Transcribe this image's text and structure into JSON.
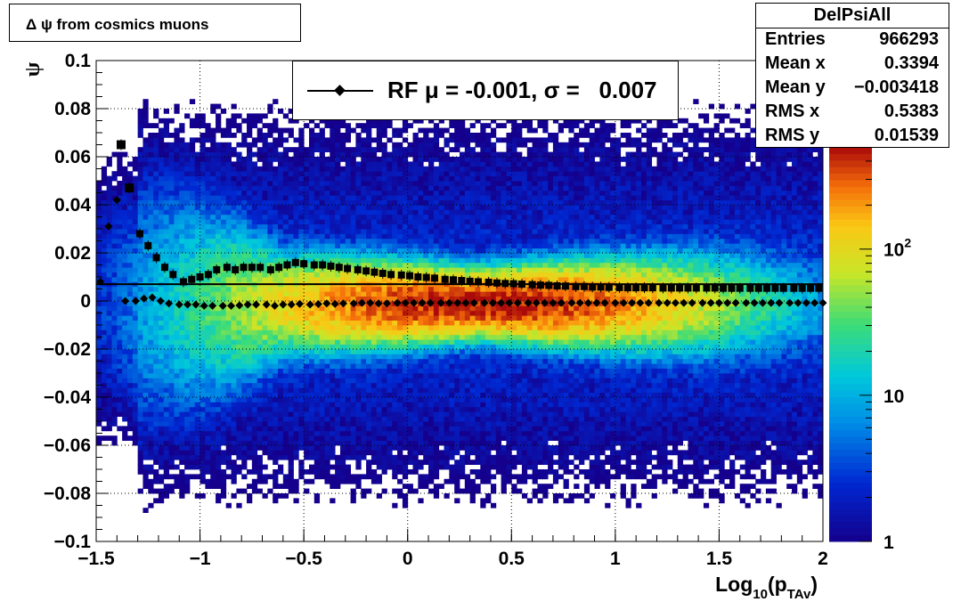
{
  "title": {
    "text": "Δ ψ from cosmics muons"
  },
  "stats": {
    "name": "DelPsiAll",
    "rows": [
      {
        "label": "Entries",
        "value": "966293"
      },
      {
        "label": "Mean x",
        "value": "0.3394"
      },
      {
        "label": "Mean y",
        "value": "−0.003418"
      },
      {
        "label": "RMS x",
        "value": "0.5383"
      },
      {
        "label": "RMS y",
        "value": "0.01539"
      }
    ]
  },
  "legend": {
    "text": "RF μ = -0.001, σ =   0.007"
  },
  "chart_data": {
    "type": "heatmap",
    "xlabel": "Log10(pTAv)",
    "ylabel": "ψ",
    "xlim": [
      -1.5,
      2.0
    ],
    "ylim": [
      -0.1,
      0.1
    ],
    "x_ticks": [
      -1.5,
      -1,
      -0.5,
      0,
      0.5,
      1,
      1.5,
      2
    ],
    "x_tick_labels": [
      "−1.5",
      "−1",
      "−0.5",
      "0",
      "0.5",
      "1",
      "1.5",
      "2"
    ],
    "y_ticks": [
      -0.1,
      -0.08,
      -0.06,
      -0.04,
      -0.02,
      0,
      0.02,
      0.04,
      0.06,
      0.08,
      0.1
    ],
    "y_tick_labels": [
      "−0.1",
      "−0.08",
      "−0.06",
      "−0.04",
      "−0.02",
      "0",
      "0.02",
      "0.04",
      "0.06",
      "0.08",
      "0.1"
    ],
    "grid": true,
    "colorbar": {
      "scale": "log",
      "range": [
        1,
        500
      ],
      "tick_values": [
        1,
        10,
        100
      ],
      "tick_labels": [
        "1",
        "10",
        "10^2"
      ]
    },
    "horizontal_line_y": 0.007,
    "series": [
      {
        "marker": "square",
        "x": [
          -1.38,
          -1.34,
          -1.29,
          -1.25,
          -1.21,
          -1.17,
          -1.13,
          -1.08,
          -1.04,
          -1.0,
          -0.96,
          -0.92,
          -0.87,
          -0.83,
          -0.79,
          -0.75,
          -0.71,
          -0.66,
          -0.62,
          -0.58,
          -0.54,
          -0.5,
          -0.45,
          -0.41,
          -0.37,
          -0.33,
          -0.29,
          -0.24,
          -0.2,
          -0.16,
          -0.12,
          -0.08,
          -0.03,
          0.01,
          0.05,
          0.09,
          0.13,
          0.18,
          0.22,
          0.26,
          0.3,
          0.34,
          0.39,
          0.43,
          0.47,
          0.51,
          0.55,
          0.6,
          0.64,
          0.68,
          0.72,
          0.76,
          0.81,
          0.85,
          0.89,
          0.93,
          0.97,
          1.02,
          1.06,
          1.1,
          1.14,
          1.18,
          1.23,
          1.27,
          1.31,
          1.35,
          1.39,
          1.44,
          1.48,
          1.52,
          1.56,
          1.6,
          1.65,
          1.69,
          1.73,
          1.77,
          1.81,
          1.86,
          1.9,
          1.94,
          1.98
        ],
        "y": [
          0.065,
          0.047,
          0.028,
          0.023,
          0.018,
          0.014,
          0.011,
          0.008,
          0.009,
          0.01,
          0.011,
          0.013,
          0.014,
          0.013,
          0.014,
          0.014,
          0.014,
          0.013,
          0.014,
          0.015,
          0.016,
          0.0155,
          0.015,
          0.015,
          0.0145,
          0.014,
          0.0135,
          0.013,
          0.0125,
          0.012,
          0.0115,
          0.011,
          0.0108,
          0.0105,
          0.01,
          0.0098,
          0.0095,
          0.009,
          0.0088,
          0.0085,
          0.0082,
          0.008,
          0.0078,
          0.0075,
          0.0073,
          0.0072,
          0.007,
          0.0068,
          0.0066,
          0.0065,
          0.0063,
          0.0062,
          0.006,
          0.006,
          0.0058,
          0.0058,
          0.0057,
          0.0056,
          0.0055,
          0.0055,
          0.0055,
          0.0055,
          0.0054,
          0.0054,
          0.0054,
          0.0054,
          0.0054,
          0.0054,
          0.0054,
          0.0053,
          0.0053,
          0.0053,
          0.0053,
          0.0053,
          0.0053,
          0.0053,
          0.0053,
          0.0053,
          0.0053,
          0.0053,
          0.0053
        ]
      },
      {
        "marker": "diamond",
        "x": [
          -1.48,
          -1.44,
          -1.4,
          -1.36,
          -1.31,
          -1.27,
          -1.23,
          -1.19,
          -1.15,
          -1.1,
          -1.06,
          -1.02,
          -0.98,
          -0.94,
          -0.89,
          -0.85,
          -0.81,
          -0.77,
          -0.73,
          -0.68,
          -0.64,
          -0.6,
          -0.56,
          -0.52,
          -0.47,
          -0.43,
          -0.39,
          -0.35,
          -0.31,
          -0.26,
          -0.22,
          -0.18,
          -0.14,
          -0.1,
          -0.05,
          -0.01,
          0.03,
          0.07,
          0.11,
          0.16,
          0.2,
          0.24,
          0.28,
          0.32,
          0.37,
          0.41,
          0.45,
          0.49,
          0.53,
          0.58,
          0.62,
          0.66,
          0.7,
          0.74,
          0.79,
          0.83,
          0.87,
          0.91,
          0.95,
          1.0,
          1.04,
          1.08,
          1.12,
          1.16,
          1.21,
          1.25,
          1.29,
          1.33,
          1.37,
          1.42,
          1.46,
          1.5,
          1.54,
          1.58,
          1.63,
          1.67,
          1.71,
          1.75,
          1.79,
          1.84,
          1.88,
          1.92,
          1.96,
          2.0
        ],
        "y": [
          0.008,
          0.031,
          0.042,
          0.0,
          0.0,
          0.001,
          0.0015,
          0.0,
          -0.001,
          -0.0015,
          -0.0015,
          -0.0015,
          -0.002,
          -0.002,
          -0.002,
          -0.002,
          -0.0018,
          -0.0015,
          -0.0015,
          -0.0015,
          -0.002,
          -0.0015,
          -0.0015,
          -0.0012,
          -0.0015,
          -0.0013,
          -0.001,
          -0.0012,
          -0.001,
          -0.001,
          -0.0008,
          -0.0008,
          -0.001,
          -0.001,
          -0.0008,
          -0.0008,
          -0.0008,
          -0.0008,
          -0.0008,
          -0.0008,
          -0.0008,
          -0.0008,
          -0.0008,
          -0.0008,
          -0.0008,
          -0.0008,
          -0.0008,
          -0.0008,
          -0.0008,
          -0.0008,
          -0.0008,
          -0.0008,
          -0.0008,
          -0.0008,
          -0.0008,
          -0.0008,
          -0.0008,
          -0.0008,
          -0.0008,
          -0.0008,
          -0.0008,
          -0.0008,
          -0.0008,
          -0.0008,
          -0.0008,
          -0.0008,
          -0.0008,
          -0.0008,
          -0.0008,
          -0.0008,
          -0.0008,
          -0.0008,
          -0.0008,
          -0.0008,
          -0.0008,
          -0.0008,
          -0.0008,
          -0.0008,
          -0.0008,
          -0.0008,
          -0.0008,
          -0.0008,
          -0.0008,
          -0.0008
        ]
      }
    ],
    "density_model": {
      "x_bins": 140,
      "y_bins": 100,
      "peak_x": 0.35,
      "peak_y": -0.001,
      "peak_count": 500
    }
  }
}
